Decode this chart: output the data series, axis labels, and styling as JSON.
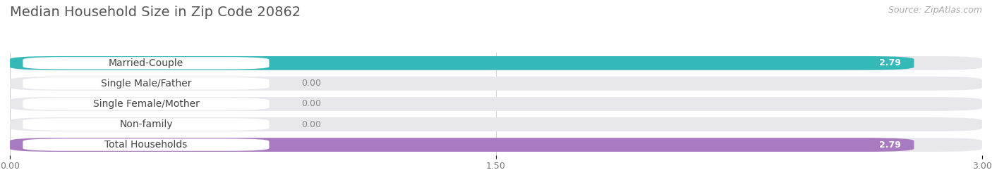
{
  "title": "Median Household Size in Zip Code 20862",
  "source": "Source: ZipAtlas.com",
  "categories": [
    "Married-Couple",
    "Single Male/Father",
    "Single Female/Mother",
    "Non-family",
    "Total Households"
  ],
  "values": [
    2.79,
    0.0,
    0.0,
    0.0,
    2.79
  ],
  "bar_colors": [
    "#35b8b8",
    "#9ab3d9",
    "#f07898",
    "#f5c898",
    "#a87ac0"
  ],
  "background_color": "#ffffff",
  "bar_track_color": "#e8e8ec",
  "label_bg_color": "#ffffff",
  "label_text_color": "#444444",
  "value_color_on_bar": "#ffffff",
  "value_color_off_bar": "#888888",
  "grid_color": "#cccccc",
  "title_color": "#555555",
  "source_color": "#aaaaaa",
  "xlim": [
    0,
    3.0
  ],
  "xticks": [
    0.0,
    1.5,
    3.0
  ],
  "title_fontsize": 14,
  "source_fontsize": 9,
  "label_fontsize": 10,
  "value_fontsize": 9,
  "figsize": [
    14.06,
    2.69
  ],
  "dpi": 100
}
